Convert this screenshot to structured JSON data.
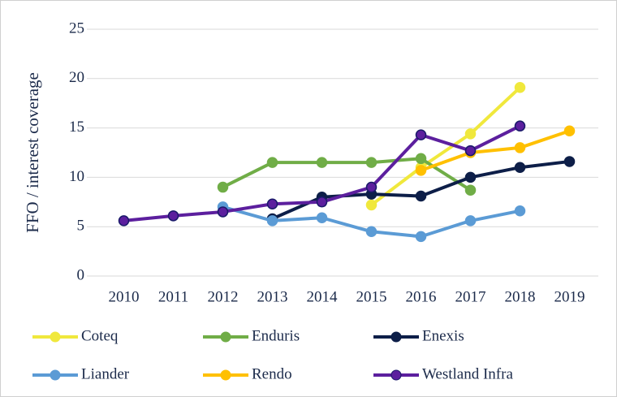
{
  "chart_data": {
    "type": "line",
    "y_axis_label": "FFO / interest coverage",
    "categories": [
      "2010",
      "2011",
      "2012",
      "2013",
      "2014",
      "2015",
      "2016",
      "2017",
      "2018",
      "2019"
    ],
    "series": [
      {
        "name": "Coteq",
        "color": "#f0e83c",
        "values": [
          null,
          null,
          null,
          null,
          null,
          7.2,
          11,
          14.4,
          19.1,
          null
        ]
      },
      {
        "name": "Enduris",
        "color": "#70ad47",
        "values": [
          null,
          null,
          9.0,
          11.5,
          11.5,
          11.5,
          11.9,
          8.7,
          null,
          null
        ]
      },
      {
        "name": "Enexis",
        "color": "#0d1e48",
        "values": [
          null,
          null,
          null,
          5.8,
          8.0,
          8.3,
          8.1,
          10.0,
          11.0,
          11.6
        ]
      },
      {
        "name": "Liander",
        "color": "#5b9bd5",
        "values": [
          null,
          null,
          7.0,
          5.6,
          5.9,
          4.5,
          4.0,
          5.6,
          6.6,
          null
        ]
      },
      {
        "name": "Rendo",
        "color": "#ffc000",
        "values": [
          null,
          null,
          null,
          null,
          null,
          null,
          10.7,
          12.5,
          13.0,
          14.7
        ]
      },
      {
        "name": "Westland Infra",
        "color": "#5c1f9e",
        "values": [
          5.6,
          6.1,
          6.5,
          7.3,
          7.5,
          9.0,
          14.3,
          12.7,
          15.2,
          null
        ]
      }
    ],
    "ylim": [
      0,
      25
    ],
    "yticks": [
      0,
      5,
      10,
      15,
      20,
      25
    ],
    "grid": true
  }
}
